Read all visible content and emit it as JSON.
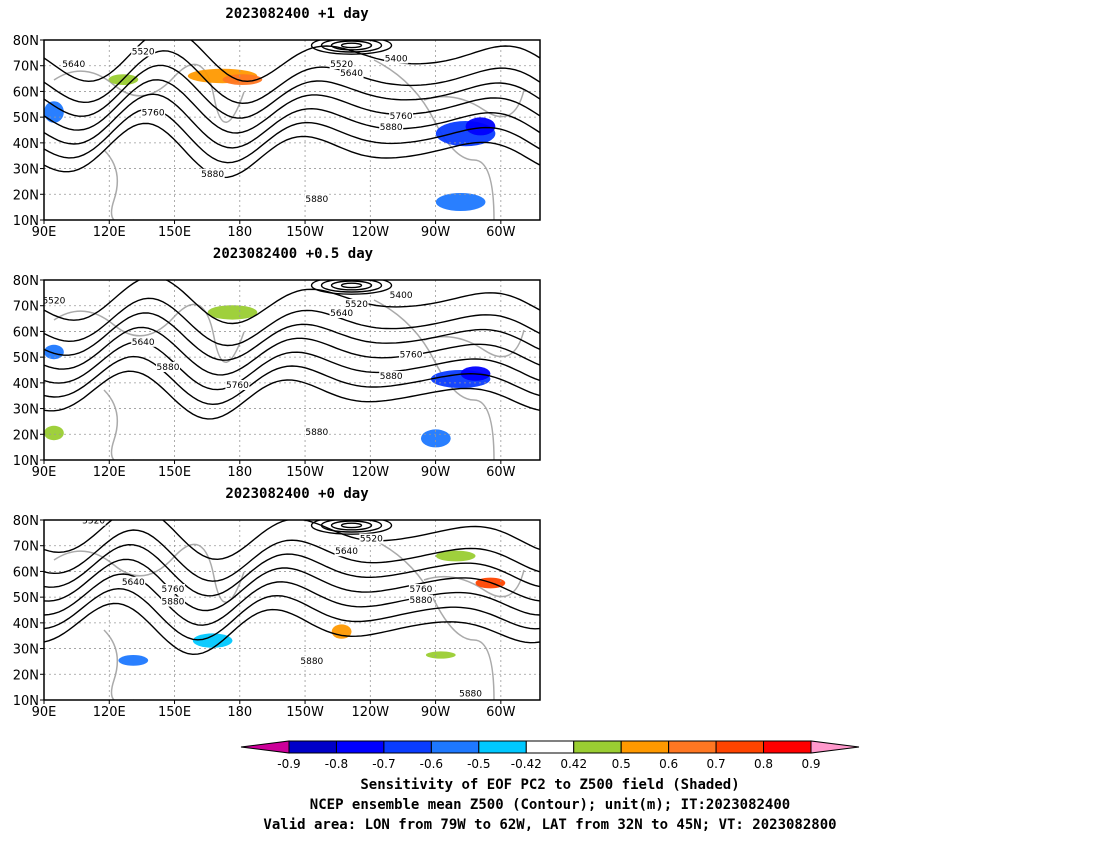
{
  "panels": [
    {
      "title": "2023082400  +1 day",
      "contour_labels": [
        "5520",
        "5640",
        "5520",
        "5400",
        "5640",
        "5760",
        "5760",
        "5880",
        "5880",
        "5880"
      ],
      "lat_labels": [
        "80N",
        "70N",
        "60N",
        "50N",
        "40N",
        "30N",
        "20N",
        "10N"
      ],
      "lon_labels": [
        "90E",
        "120E",
        "150E",
        "180",
        "150W",
        "120W",
        "90W",
        "60W"
      ]
    },
    {
      "title": "2023082400  +0.5 day",
      "contour_labels": [
        "5520",
        "5520",
        "5400",
        "5640",
        "5640",
        "5760",
        "5880",
        "5760",
        "5880",
        "5880"
      ],
      "lat_labels": [
        "80N",
        "70N",
        "60N",
        "50N",
        "40N",
        "30N",
        "20N",
        "10N"
      ],
      "lon_labels": [
        "90E",
        "120E",
        "150E",
        "180",
        "150W",
        "120W",
        "90W",
        "60W"
      ]
    },
    {
      "title": "2023082400  +0 day",
      "contour_labels": [
        "5520",
        "5520",
        "5640",
        "5640",
        "5760",
        "5880",
        "5760",
        "5880",
        "5880",
        "5880"
      ],
      "lat_labels": [
        "80N",
        "70N",
        "60N",
        "50N",
        "40N",
        "30N",
        "20N",
        "10N"
      ],
      "lon_labels": [
        "90E",
        "120E",
        "150E",
        "180",
        "150W",
        "120W",
        "90W",
        "60W"
      ]
    }
  ],
  "colorbar": {
    "ticks": [
      "-0.9",
      "-0.8",
      "-0.7",
      "-0.6",
      "-0.5",
      "-0.42",
      "0.42",
      "0.5",
      "0.6",
      "0.7",
      "0.8",
      "0.9"
    ],
    "colors": [
      "#0000c8",
      "#0000ff",
      "#0a3cff",
      "#1e78ff",
      "#00c8ff",
      "#ffffff",
      "#9acd32",
      "#ff9900",
      "#ff7722",
      "#ff4400",
      "#ff0000"
    ],
    "low_end_color": "#cc0099",
    "high_end_color": "#ff99cc"
  },
  "captions": [
    "Sensitivity of EOF PC2 to Z500 field (Shaded)",
    "NCEP ensemble mean Z500 (Contour); unit(m); IT:2023082400",
    "Valid area: LON from 79W to 62W, LAT from 32N to 45N; VT: 2023082800"
  ]
}
